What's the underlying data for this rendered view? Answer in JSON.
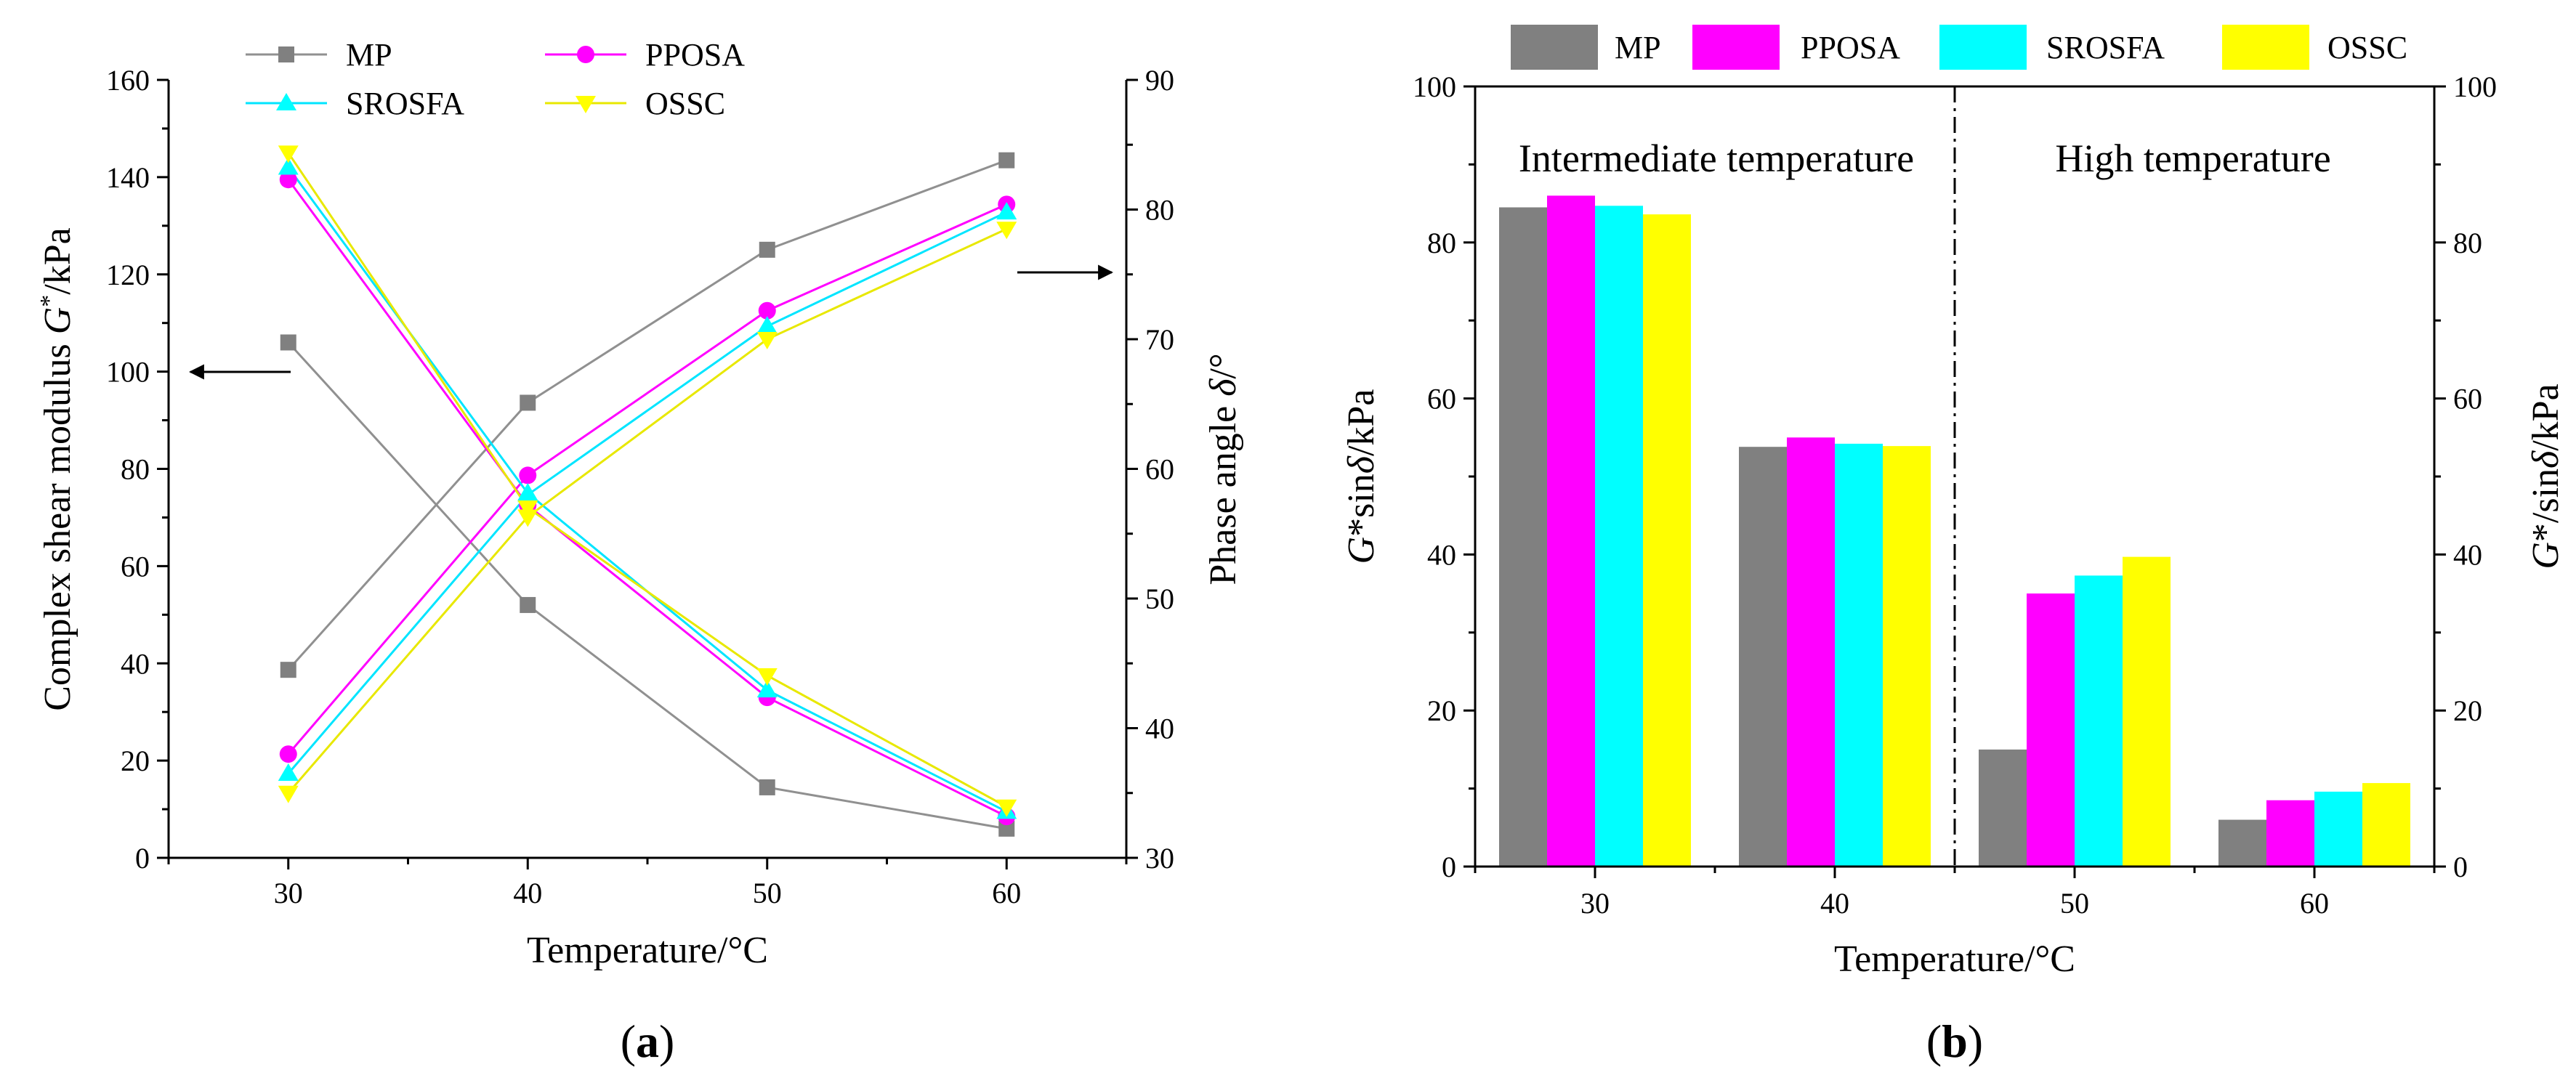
{
  "chart_data": [
    {
      "type": "line",
      "panel_label": "a",
      "xlabel": "Temperature/°C",
      "ylabel_left_prefix": "Complex shear modulus ",
      "ylabel_left_var": "G",
      "ylabel_left_sup": "*",
      "ylabel_left_suffix": "/kPa",
      "ylabel_right_prefix": "Phase angle ",
      "ylabel_right_var": "δ",
      "ylabel_right_suffix": "/°",
      "x": [
        30,
        40,
        50,
        60
      ],
      "xlim": [
        25,
        65
      ],
      "xticks": [
        "30",
        "40",
        "50",
        "60"
      ],
      "ylim_left": [
        0,
        160
      ],
      "yticks_left": [
        "0",
        "20",
        "40",
        "60",
        "80",
        "100",
        "120",
        "140",
        "160"
      ],
      "ylim_right": [
        30,
        90
      ],
      "yticks_right": [
        "30",
        "40",
        "50",
        "60",
        "70",
        "80",
        "90"
      ],
      "series": [
        {
          "name": "MP",
          "color": "#808080",
          "line_color": "#909090",
          "marker": "square",
          "modulus": [
            106,
            52,
            14.5,
            6
          ],
          "phase_angle": [
            44.5,
            65.1,
            76.9,
            83.8
          ]
        },
        {
          "name": "PPOSA",
          "color": "#ff00ff",
          "line_color": "#ff00ff",
          "marker": "circle",
          "modulus": [
            139.5,
            72.5,
            33,
            8.5
          ],
          "phase_angle": [
            38,
            59.5,
            72.2,
            80.4
          ]
        },
        {
          "name": "SROSFA",
          "color": "#00ffff",
          "line_color": "#00e5ff",
          "marker": "triangle-up",
          "modulus": [
            142,
            75,
            34.5,
            9.5
          ],
          "phase_angle": [
            36.5,
            58,
            71,
            79.8
          ]
        },
        {
          "name": "OSSC",
          "color": "#ffff00",
          "line_color": "#e8e800",
          "marker": "triangle-down",
          "modulus": [
            145,
            72,
            37.5,
            10.5
          ],
          "phase_angle": [
            35,
            56.3,
            70,
            78.5
          ]
        }
      ],
      "annotations": [
        "left arrow at 30°C points to left axis (modulus)",
        "right arrow near 60°C points to right axis (phase angle)"
      ]
    },
    {
      "type": "bar",
      "panel_label": "b",
      "xlabel": "Temperature/°C",
      "ylabel_left_var": "G",
      "ylabel_left_text": "*sin",
      "ylabel_left_var2": "δ",
      "ylabel_left_suffix": "/kPa",
      "ylabel_right_var": "G",
      "ylabel_right_text": "*/sin",
      "ylabel_right_var2": "δ",
      "ylabel_right_suffix": "/kPa",
      "categories": [
        "30",
        "40",
        "50",
        "60"
      ],
      "ylim": [
        0,
        100
      ],
      "yticks": [
        "0",
        "20",
        "40",
        "60",
        "80",
        "100"
      ],
      "series": [
        {
          "name": "MP",
          "color": "#808080",
          "values": [
            84.5,
            53.8,
            15,
            6
          ]
        },
        {
          "name": "PPOSA",
          "color": "#ff00ff",
          "values": [
            86,
            55,
            35,
            8.5
          ]
        },
        {
          "name": "SROSFA",
          "color": "#00ffff",
          "values": [
            84.7,
            54.2,
            37.3,
            9.6
          ]
        },
        {
          "name": "OSSC",
          "color": "#ffff00",
          "values": [
            83.6,
            53.9,
            39.7,
            10.7
          ]
        }
      ],
      "region_labels": [
        "Intermediate temperature",
        "High temperature"
      ],
      "divider": "dash-dot line between 40 and 50"
    }
  ]
}
